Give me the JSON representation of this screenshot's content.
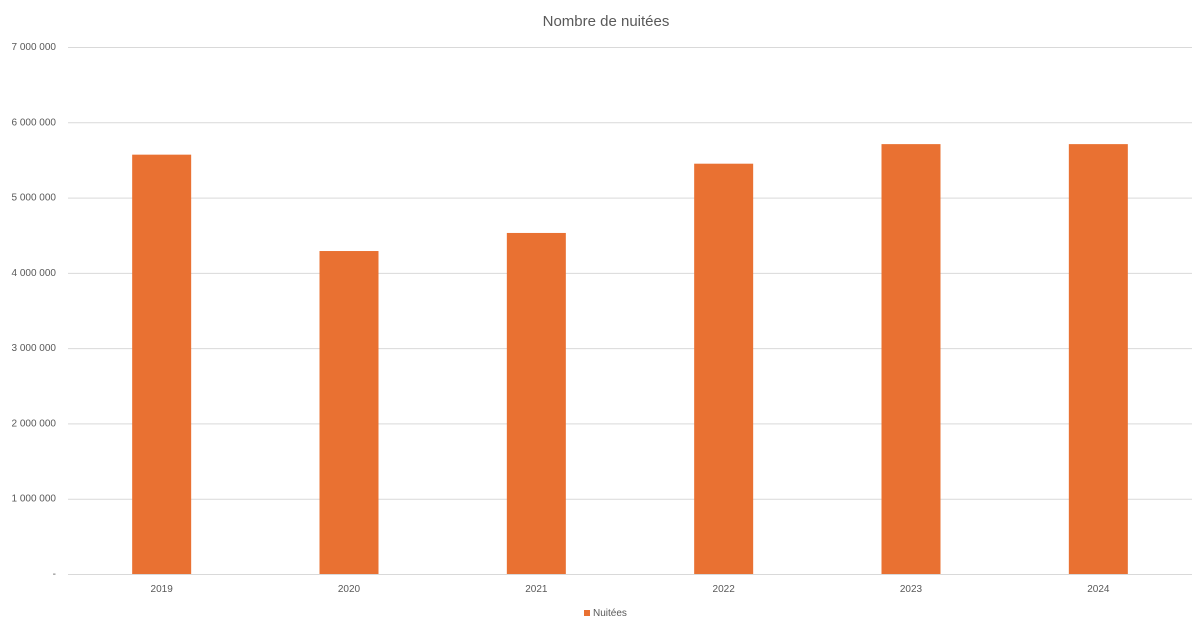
{
  "colors": {
    "bar": "#E97132",
    "grid": "#D9D9D9",
    "text": "#595959"
  },
  "chart_data": {
    "type": "bar",
    "title": "Nombre de nuitées",
    "xlabel": "",
    "ylabel": "",
    "categories": [
      "2019",
      "2020",
      "2021",
      "2022",
      "2023",
      "2024"
    ],
    "series": [
      {
        "name": "Nuitées",
        "values": [
          5570000,
          4290000,
          4530000,
          5450000,
          5710000,
          5710000
        ]
      }
    ],
    "ylim": [
      0,
      7000000
    ],
    "y_ticks": [
      0,
      1000000,
      2000000,
      3000000,
      4000000,
      5000000,
      6000000,
      7000000
    ],
    "y_tick_labels": [
      "-",
      "1 000 000",
      "2 000 000",
      "3 000 000",
      "4 000 000",
      "5 000 000",
      "6 000 000",
      "7 000 000"
    ],
    "grid": true,
    "legend": "bottom"
  }
}
